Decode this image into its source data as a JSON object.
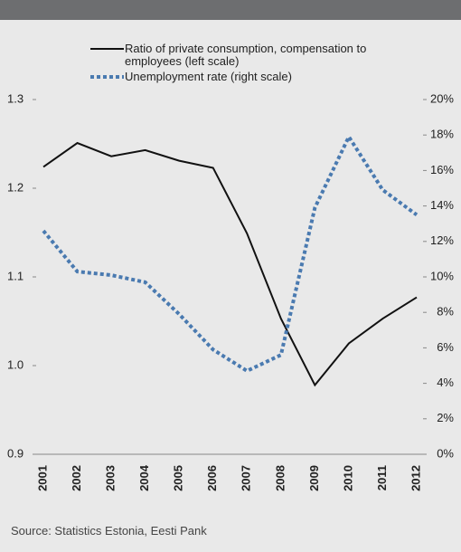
{
  "chart_data": {
    "type": "line",
    "source": "Source: Statistics Estonia, Eesti Pank",
    "categories": [
      "2001",
      "2002",
      "2003",
      "2004",
      "2005",
      "2006",
      "2007",
      "2008",
      "2009",
      "2010",
      "2011",
      "2012"
    ],
    "series": [
      {
        "name": "Ratio of private consumption, compensation to employees (left scale)",
        "color": "#111111",
        "axis": "y",
        "values": [
          1.224,
          1.251,
          1.236,
          1.243,
          1.231,
          1.223,
          1.149,
          1.053,
          0.978,
          1.025,
          1.053,
          1.077
        ]
      },
      {
        "name": "Unemployment rate (right scale)",
        "color": "#4a7ab0",
        "axis": "y2",
        "values": [
          12.6,
          10.3,
          10.1,
          9.7,
          7.9,
          5.9,
          4.7,
          5.6,
          13.9,
          17.9,
          14.9,
          13.5
        ]
      }
    ],
    "ylim": [
      0.9,
      1.3
    ],
    "yticks": [
      0.9,
      {
        "value": 1,
        "label": "1.0"
      },
      1.1,
      1.2,
      1.3
    ],
    "y2lim": [
      0,
      20
    ],
    "y2ticks": [
      {
        "value": 0,
        "label": "0%"
      },
      {
        "value": 2,
        "label": "2%"
      },
      {
        "value": 4,
        "label": "4%"
      },
      {
        "value": 6,
        "label": "6%"
      },
      {
        "value": 8,
        "label": "8%"
      },
      {
        "value": 10,
        "label": "10%"
      },
      {
        "value": 12,
        "label": "12%"
      },
      {
        "value": 14,
        "label": "14%"
      },
      {
        "value": 16,
        "label": "16%"
      },
      {
        "value": 18,
        "label": "18%"
      },
      {
        "value": 20,
        "label": "20%"
      }
    ]
  }
}
